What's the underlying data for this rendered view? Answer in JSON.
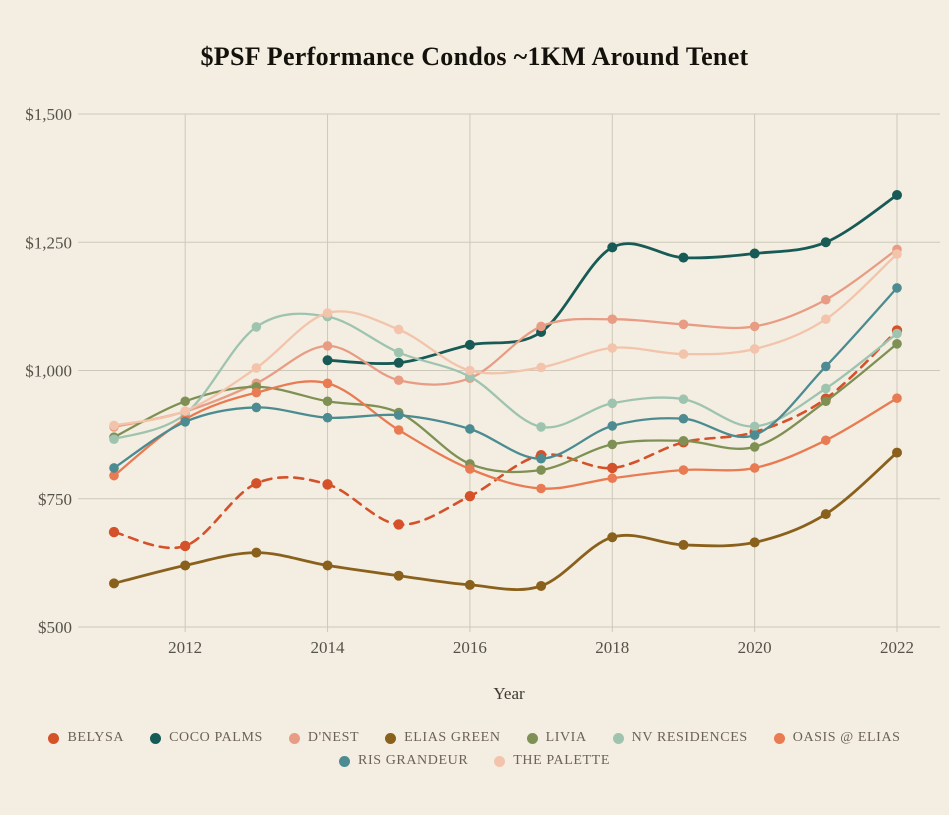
{
  "title": "$PSF Performance Condos ~1KM Around Tenet",
  "colors": {
    "background": "#f3eee1",
    "grid": "#cdc8ba",
    "tick_text": "#55524a",
    "title_text": "#14110c",
    "legend_text": "#6d6156"
  },
  "chart_data": {
    "type": "line",
    "title": "$PSF Performance Condos ~1KM Around Tenet",
    "xlabel": "Year",
    "ylabel": "",
    "x": [
      2011,
      2012,
      2013,
      2014,
      2015,
      2016,
      2017,
      2018,
      2019,
      2020,
      2021,
      2022
    ],
    "x_tick_labels": [
      "2012",
      "2014",
      "2016",
      "2018",
      "2020",
      "2022"
    ],
    "x_tick_values": [
      2012,
      2014,
      2016,
      2018,
      2020,
      2022
    ],
    "y_tick_labels": [
      "$500",
      "$750",
      "$1,000",
      "$1,250",
      "$1,500"
    ],
    "y_tick_values": [
      500,
      750,
      1000,
      1250,
      1500
    ],
    "ylim": [
      500,
      1500
    ],
    "xlim": [
      2011,
      2022
    ],
    "grid": true,
    "legend_position": "bottom",
    "smoothing": "catmull-rom",
    "series": [
      {
        "name": "BELYSA",
        "color": "#d4512a",
        "dashed": true,
        "line_width": 2.6,
        "point_radius": 5.2,
        "values": [
          685,
          658,
          780,
          778,
          700,
          755,
          835,
          810,
          860,
          880,
          945,
          1078
        ]
      },
      {
        "name": "COCO PALMS",
        "color": "#175a56",
        "dashed": false,
        "line_width": 2.8,
        "point_radius": 5.0,
        "values": [
          null,
          null,
          null,
          1020,
          1015,
          1050,
          1075,
          1240,
          1220,
          1228,
          1250,
          1342
        ]
      },
      {
        "name": "D'NEST",
        "color": "#e99c84",
        "dashed": false,
        "line_width": 2.3,
        "point_radius": 4.8,
        "values": [
          890,
          920,
          975,
          1048,
          981,
          985,
          1086,
          1100,
          1090,
          1086,
          1138,
          1236
        ]
      },
      {
        "name": "ELIAS GREEN",
        "color": "#8a611c",
        "dashed": false,
        "line_width": 2.8,
        "point_radius": 5.0,
        "values": [
          585,
          620,
          645,
          620,
          600,
          582,
          580,
          675,
          660,
          665,
          720,
          840
        ]
      },
      {
        "name": "LIVIA",
        "color": "#7f9054",
        "dashed": false,
        "line_width": 2.3,
        "point_radius": 4.8,
        "values": [
          870,
          940,
          968,
          940,
          918,
          818,
          806,
          856,
          863,
          851,
          940,
          1052
        ]
      },
      {
        "name": "NV RESIDENCES",
        "color": "#9ec4b0",
        "dashed": false,
        "line_width": 2.3,
        "point_radius": 4.8,
        "values": [
          866,
          915,
          1085,
          1105,
          1035,
          988,
          890,
          936,
          944,
          891,
          965,
          1072
        ]
      },
      {
        "name": "OASIS @ ELIAS",
        "color": "#e97b52",
        "dashed": false,
        "line_width": 2.3,
        "point_radius": 4.8,
        "values": [
          795,
          905,
          957,
          975,
          884,
          808,
          770,
          790,
          806,
          810,
          864,
          946
        ]
      },
      {
        "name": "RIS GRANDEUR",
        "color": "#4c8b91",
        "dashed": false,
        "line_width": 2.3,
        "point_radius": 4.8,
        "values": [
          810,
          900,
          928,
          908,
          913,
          886,
          828,
          892,
          906,
          874,
          1008,
          1161
        ]
      },
      {
        "name": "THE PALETTE",
        "color": "#f3c4ab",
        "dashed": false,
        "line_width": 2.3,
        "point_radius": 4.8,
        "values": [
          893,
          921,
          1005,
          1112,
          1080,
          1000,
          1006,
          1044,
          1032,
          1042,
          1100,
          1227
        ]
      }
    ]
  }
}
